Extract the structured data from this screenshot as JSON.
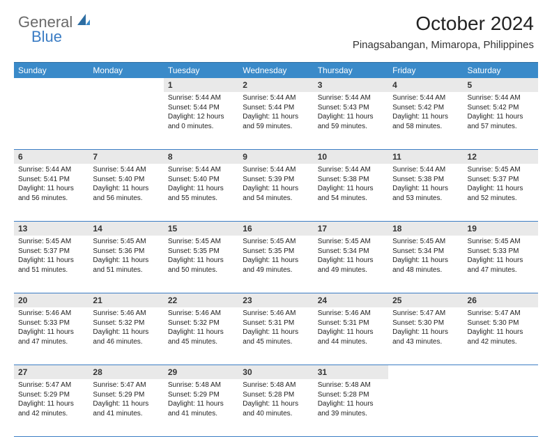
{
  "logo": {
    "text1": "General",
    "text2": "Blue"
  },
  "title": "October 2024",
  "location": "Pinagsabangan, Mimaropa, Philippines",
  "colors": {
    "header_bg": "#3a8ac9",
    "header_text": "#ffffff",
    "daynum_bg": "#e9e9e9",
    "border": "#3a7cc4",
    "logo_gray": "#6a6a6a",
    "logo_blue": "#3a7cc4"
  },
  "dayHeaders": [
    "Sunday",
    "Monday",
    "Tuesday",
    "Wednesday",
    "Thursday",
    "Friday",
    "Saturday"
  ],
  "weeks": [
    [
      null,
      null,
      {
        "n": "1",
        "lines": [
          "Sunrise: 5:44 AM",
          "Sunset: 5:44 PM",
          "Daylight: 12 hours",
          "and 0 minutes."
        ]
      },
      {
        "n": "2",
        "lines": [
          "Sunrise: 5:44 AM",
          "Sunset: 5:44 PM",
          "Daylight: 11 hours",
          "and 59 minutes."
        ]
      },
      {
        "n": "3",
        "lines": [
          "Sunrise: 5:44 AM",
          "Sunset: 5:43 PM",
          "Daylight: 11 hours",
          "and 59 minutes."
        ]
      },
      {
        "n": "4",
        "lines": [
          "Sunrise: 5:44 AM",
          "Sunset: 5:42 PM",
          "Daylight: 11 hours",
          "and 58 minutes."
        ]
      },
      {
        "n": "5",
        "lines": [
          "Sunrise: 5:44 AM",
          "Sunset: 5:42 PM",
          "Daylight: 11 hours",
          "and 57 minutes."
        ]
      }
    ],
    [
      {
        "n": "6",
        "lines": [
          "Sunrise: 5:44 AM",
          "Sunset: 5:41 PM",
          "Daylight: 11 hours",
          "and 56 minutes."
        ]
      },
      {
        "n": "7",
        "lines": [
          "Sunrise: 5:44 AM",
          "Sunset: 5:40 PM",
          "Daylight: 11 hours",
          "and 56 minutes."
        ]
      },
      {
        "n": "8",
        "lines": [
          "Sunrise: 5:44 AM",
          "Sunset: 5:40 PM",
          "Daylight: 11 hours",
          "and 55 minutes."
        ]
      },
      {
        "n": "9",
        "lines": [
          "Sunrise: 5:44 AM",
          "Sunset: 5:39 PM",
          "Daylight: 11 hours",
          "and 54 minutes."
        ]
      },
      {
        "n": "10",
        "lines": [
          "Sunrise: 5:44 AM",
          "Sunset: 5:38 PM",
          "Daylight: 11 hours",
          "and 54 minutes."
        ]
      },
      {
        "n": "11",
        "lines": [
          "Sunrise: 5:44 AM",
          "Sunset: 5:38 PM",
          "Daylight: 11 hours",
          "and 53 minutes."
        ]
      },
      {
        "n": "12",
        "lines": [
          "Sunrise: 5:45 AM",
          "Sunset: 5:37 PM",
          "Daylight: 11 hours",
          "and 52 minutes."
        ]
      }
    ],
    [
      {
        "n": "13",
        "lines": [
          "Sunrise: 5:45 AM",
          "Sunset: 5:37 PM",
          "Daylight: 11 hours",
          "and 51 minutes."
        ]
      },
      {
        "n": "14",
        "lines": [
          "Sunrise: 5:45 AM",
          "Sunset: 5:36 PM",
          "Daylight: 11 hours",
          "and 51 minutes."
        ]
      },
      {
        "n": "15",
        "lines": [
          "Sunrise: 5:45 AM",
          "Sunset: 5:35 PM",
          "Daylight: 11 hours",
          "and 50 minutes."
        ]
      },
      {
        "n": "16",
        "lines": [
          "Sunrise: 5:45 AM",
          "Sunset: 5:35 PM",
          "Daylight: 11 hours",
          "and 49 minutes."
        ]
      },
      {
        "n": "17",
        "lines": [
          "Sunrise: 5:45 AM",
          "Sunset: 5:34 PM",
          "Daylight: 11 hours",
          "and 49 minutes."
        ]
      },
      {
        "n": "18",
        "lines": [
          "Sunrise: 5:45 AM",
          "Sunset: 5:34 PM",
          "Daylight: 11 hours",
          "and 48 minutes."
        ]
      },
      {
        "n": "19",
        "lines": [
          "Sunrise: 5:45 AM",
          "Sunset: 5:33 PM",
          "Daylight: 11 hours",
          "and 47 minutes."
        ]
      }
    ],
    [
      {
        "n": "20",
        "lines": [
          "Sunrise: 5:46 AM",
          "Sunset: 5:33 PM",
          "Daylight: 11 hours",
          "and 47 minutes."
        ]
      },
      {
        "n": "21",
        "lines": [
          "Sunrise: 5:46 AM",
          "Sunset: 5:32 PM",
          "Daylight: 11 hours",
          "and 46 minutes."
        ]
      },
      {
        "n": "22",
        "lines": [
          "Sunrise: 5:46 AM",
          "Sunset: 5:32 PM",
          "Daylight: 11 hours",
          "and 45 minutes."
        ]
      },
      {
        "n": "23",
        "lines": [
          "Sunrise: 5:46 AM",
          "Sunset: 5:31 PM",
          "Daylight: 11 hours",
          "and 45 minutes."
        ]
      },
      {
        "n": "24",
        "lines": [
          "Sunrise: 5:46 AM",
          "Sunset: 5:31 PM",
          "Daylight: 11 hours",
          "and 44 minutes."
        ]
      },
      {
        "n": "25",
        "lines": [
          "Sunrise: 5:47 AM",
          "Sunset: 5:30 PM",
          "Daylight: 11 hours",
          "and 43 minutes."
        ]
      },
      {
        "n": "26",
        "lines": [
          "Sunrise: 5:47 AM",
          "Sunset: 5:30 PM",
          "Daylight: 11 hours",
          "and 42 minutes."
        ]
      }
    ],
    [
      {
        "n": "27",
        "lines": [
          "Sunrise: 5:47 AM",
          "Sunset: 5:29 PM",
          "Daylight: 11 hours",
          "and 42 minutes."
        ]
      },
      {
        "n": "28",
        "lines": [
          "Sunrise: 5:47 AM",
          "Sunset: 5:29 PM",
          "Daylight: 11 hours",
          "and 41 minutes."
        ]
      },
      {
        "n": "29",
        "lines": [
          "Sunrise: 5:48 AM",
          "Sunset: 5:29 PM",
          "Daylight: 11 hours",
          "and 41 minutes."
        ]
      },
      {
        "n": "30",
        "lines": [
          "Sunrise: 5:48 AM",
          "Sunset: 5:28 PM",
          "Daylight: 11 hours",
          "and 40 minutes."
        ]
      },
      {
        "n": "31",
        "lines": [
          "Sunrise: 5:48 AM",
          "Sunset: 5:28 PM",
          "Daylight: 11 hours",
          "and 39 minutes."
        ]
      },
      null,
      null
    ]
  ]
}
